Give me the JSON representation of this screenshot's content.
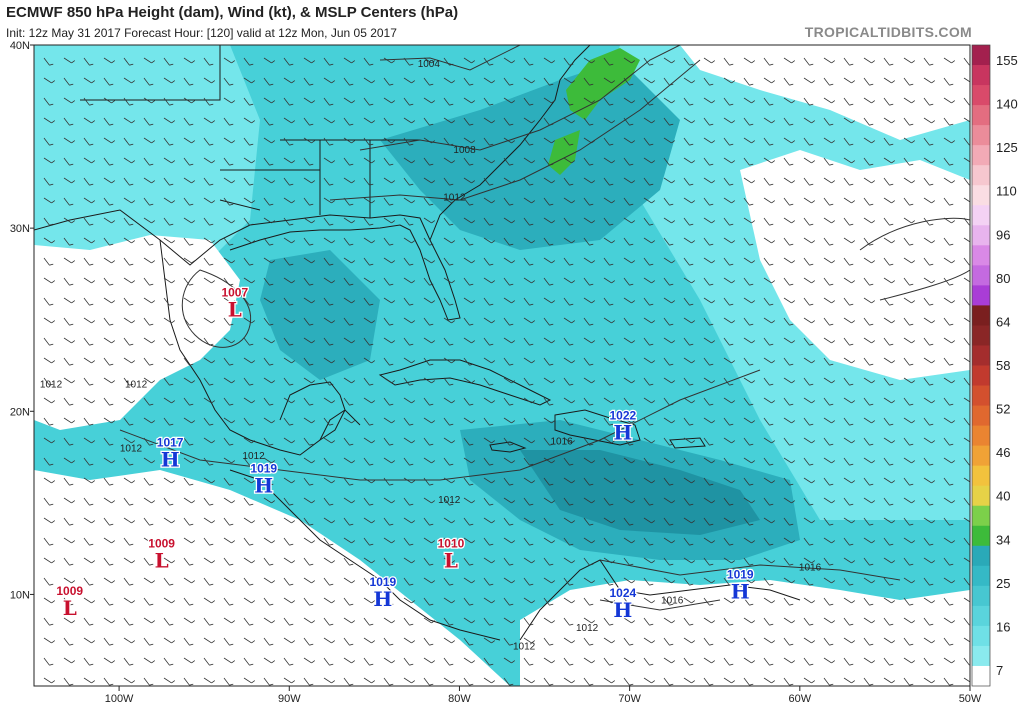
{
  "header": {
    "title": "ECMWF 850 hPa Height (dam), Wind (kt), & MSLP Centers (hPa)",
    "subtitle": "Init: 12z May 31 2017   Forecast Hour: [120]   valid at 12z Mon, Jun 05 2017",
    "brand": "TROPICALTIDBITS.COM"
  },
  "map": {
    "lat_labels": [
      "40N",
      "30N",
      "20N",
      "10N"
    ],
    "lon_labels": [
      "100W",
      "90W",
      "80W",
      "70W",
      "60W",
      "50W"
    ],
    "lat_values": [
      40,
      30,
      20,
      10
    ],
    "lon_values": [
      -100,
      -90,
      -80,
      -70,
      -60,
      -50
    ],
    "lon_range": [
      -105,
      -50
    ],
    "lat_range": [
      5,
      40
    ],
    "colorbar_labels": [
      "155",
      "140",
      "125",
      "110",
      "96",
      "80",
      "64",
      "58",
      "52",
      "46",
      "40",
      "34",
      "25",
      "16",
      "7"
    ],
    "colors": {
      "land_white": "#ffffff",
      "light_cyan": "#6fe6ea",
      "cyan": "#3fcdd6",
      "teal": "#2aa9b8",
      "dark_teal": "#1e8a99",
      "green": "#3dbb3a",
      "high_blue": "#1437d6",
      "low_red": "#c8102e"
    },
    "pressure_centers": [
      {
        "type": "L",
        "value": "1007",
        "lat": 25.5,
        "lon": -93.2
      },
      {
        "type": "H",
        "value": "1017",
        "lat": 17.3,
        "lon": -97.0
      },
      {
        "type": "H",
        "value": "1019",
        "lat": 15.9,
        "lon": -91.5
      },
      {
        "type": "L",
        "value": "1009",
        "lat": 11.8,
        "lon": -97.5
      },
      {
        "type": "L",
        "value": "1009",
        "lat": 9.2,
        "lon": -102.9
      },
      {
        "type": "L",
        "value": "1010",
        "lat": 11.8,
        "lon": -80.5
      },
      {
        "type": "H",
        "value": "1019",
        "lat": 9.7,
        "lon": -84.5
      },
      {
        "type": "H",
        "value": "1022",
        "lat": 18.8,
        "lon": -70.4
      },
      {
        "type": "H",
        "value": "1024",
        "lat": 9.1,
        "lon": -70.4
      },
      {
        "type": "H",
        "value": "1019",
        "lat": 10.1,
        "lon": -63.5
      }
    ],
    "isobar_labels": [
      {
        "text": "1004",
        "lat": 38.8,
        "lon": -81.8
      },
      {
        "text": "1008",
        "lat": 34.1,
        "lon": -79.7
      },
      {
        "text": "1012",
        "lat": 31.5,
        "lon": -80.3
      },
      {
        "text": "1012",
        "lat": 21.3,
        "lon": -104.0
      },
      {
        "text": "1012",
        "lat": 21.3,
        "lon": -99.0
      },
      {
        "text": "1012",
        "lat": 17.8,
        "lon": -99.3
      },
      {
        "text": "1012",
        "lat": 17.4,
        "lon": -92.1
      },
      {
        "text": "1012",
        "lat": 15.0,
        "lon": -80.6
      },
      {
        "text": "1016",
        "lat": 18.2,
        "lon": -74.0
      },
      {
        "text": "1016",
        "lat": 11.3,
        "lon": -59.4
      },
      {
        "text": "1016",
        "lat": 9.5,
        "lon": -67.5
      },
      {
        "text": "1012",
        "lat": 7.0,
        "lon": -76.2
      },
      {
        "text": "1012",
        "lat": 8.0,
        "lon": -72.5
      }
    ]
  }
}
